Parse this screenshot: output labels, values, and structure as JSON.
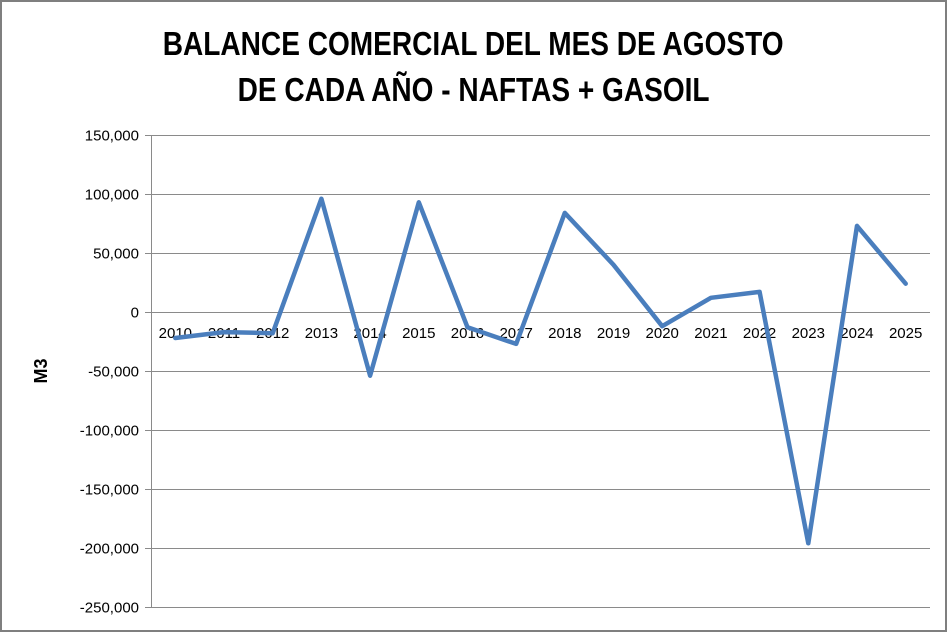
{
  "chart_data": {
    "type": "line",
    "title_lines": [
      "BALANCE COMERCIAL DEL MES DE AGOSTO",
      "DE CADA AÑO - NAFTAS + GASOIL"
    ],
    "ylabel": "M3",
    "xlabel": "",
    "categories": [
      "2010",
      "2011",
      "2012",
      "2013",
      "2014",
      "2015",
      "2016",
      "2017",
      "2018",
      "2019",
      "2020",
      "2021",
      "2022",
      "2023",
      "2024",
      "2025"
    ],
    "values": [
      -22000,
      -17000,
      -18000,
      96000,
      -54000,
      93000,
      -13000,
      -27000,
      84000,
      40000,
      -12000,
      12000,
      17000,
      -196000,
      73000,
      24000
    ],
    "ylim": [
      -250000,
      150000
    ],
    "ytick_step": 50000,
    "ytick_labels": [
      "150,000",
      "100,000",
      "50,000",
      "0",
      "-50,000",
      "-100,000",
      "-150,000",
      "-200,000",
      "-250,000"
    ],
    "grid": true,
    "legend": "none",
    "colors": {
      "line": "#4a7ebd",
      "gridline": "#8a8a8a",
      "axis": "#8a8a8a",
      "text": "#000000",
      "frame_border": "#7f7f7f",
      "background": "#ffffff"
    }
  }
}
